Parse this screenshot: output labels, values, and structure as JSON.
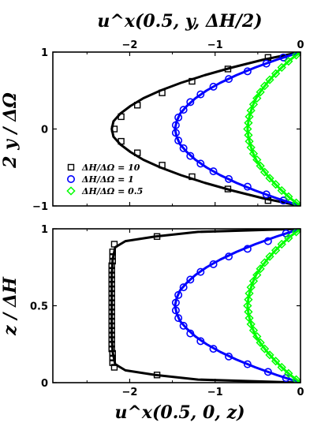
{
  "chart_data": [
    {
      "type": "line",
      "title": "u^x(0.5, y, ΔH/2)",
      "xlabel": "u^x(0.5, y, ΔH/2)",
      "ylabel": "2 y / ΔΩ",
      "xlim": [
        -2.9,
        0.0
      ],
      "ylim": [
        -1.0,
        1.0
      ],
      "x_ticks": [
        "−2",
        "−1",
        "0"
      ],
      "x_tick_values": [
        -2,
        -1,
        0
      ],
      "y_ticks": [
        "−1",
        "0",
        "1"
      ],
      "y_tick_values": [
        -1,
        0,
        1
      ],
      "x_axis_position": "top",
      "grid": false,
      "legend": {
        "location": "lower-left",
        "entries": [
          {
            "label": "ΔH/ΔΩ = 10",
            "color": "#000000",
            "marker": "square"
          },
          {
            "label": "ΔH/ΔΩ = 1",
            "color": "#0000ff",
            "marker": "circle"
          },
          {
            "label": "ΔH/ΔΩ = 0.5",
            "color": "#00ff00",
            "marker": "diamond"
          }
        ]
      },
      "series": [
        {
          "name": "ΔH/ΔΩ = 10",
          "color": "#000000",
          "marker": "square",
          "line_peak": -2.22,
          "y": [
            -1.0,
            -0.9,
            -0.8,
            -0.7,
            -0.6,
            -0.5,
            -0.4,
            -0.3,
            -0.2,
            -0.1,
            0.0,
            0.1,
            0.2,
            0.3,
            0.4,
            0.5,
            0.6,
            0.7,
            0.8,
            0.9,
            1.0
          ],
          "x": [
            0.0,
            -0.44,
            -0.8,
            -1.12,
            -1.4,
            -1.64,
            -1.84,
            -1.99,
            -2.11,
            -2.19,
            -2.21,
            -2.19,
            -2.11,
            -1.99,
            -1.84,
            -1.64,
            -1.4,
            -1.12,
            -0.8,
            -0.44,
            0.0
          ],
          "markers_y": [
            -0.93,
            -0.78,
            -0.62,
            -0.47,
            -0.31,
            -0.16,
            0.0,
            0.16,
            0.31,
            0.47,
            0.62,
            0.78,
            0.93
          ],
          "markers_x": [
            -0.38,
            -0.85,
            -1.27,
            -1.62,
            -1.91,
            -2.1,
            -2.18,
            -2.1,
            -1.91,
            -1.62,
            -1.27,
            -0.85,
            -0.38
          ]
        },
        {
          "name": "ΔH/ΔΩ = 1",
          "color": "#0000ff",
          "marker": "circle",
          "line_peak": -1.47,
          "y": [
            -1.0,
            -0.9,
            -0.8,
            -0.7,
            -0.6,
            -0.5,
            -0.4,
            -0.3,
            -0.2,
            -0.1,
            0.0,
            0.1,
            0.2,
            0.3,
            0.4,
            0.5,
            0.6,
            0.7,
            0.8,
            0.9,
            1.0
          ],
          "x": [
            0.0,
            -0.28,
            -0.53,
            -0.75,
            -0.94,
            -1.1,
            -1.23,
            -1.33,
            -1.41,
            -1.45,
            -1.47,
            -1.45,
            -1.41,
            -1.33,
            -1.23,
            -1.1,
            -0.94,
            -0.75,
            -0.53,
            -0.28,
            0.0
          ],
          "markers_y": [
            -0.93,
            -0.85,
            -0.75,
            -0.65,
            -0.55,
            -0.45,
            -0.35,
            -0.25,
            -0.15,
            -0.05,
            0.05,
            0.15,
            0.25,
            0.35,
            0.45,
            0.55,
            0.65,
            0.75,
            0.85,
            0.93
          ],
          "markers_x": [
            -0.2,
            -0.4,
            -0.62,
            -0.84,
            -1.02,
            -1.17,
            -1.29,
            -1.37,
            -1.43,
            -1.46,
            -1.46,
            -1.43,
            -1.37,
            -1.29,
            -1.17,
            -1.02,
            -0.84,
            -0.62,
            -0.4,
            -0.2
          ]
        },
        {
          "name": "ΔH/ΔΩ = 0.5",
          "color": "#00ff00",
          "marker": "diamond",
          "line_peak": -0.62,
          "y": [
            -1.0,
            -0.9,
            -0.8,
            -0.7,
            -0.6,
            -0.5,
            -0.4,
            -0.3,
            -0.2,
            -0.1,
            0.0,
            0.1,
            0.2,
            0.3,
            0.4,
            0.5,
            0.6,
            0.7,
            0.8,
            0.9,
            1.0
          ],
          "x": [
            0.0,
            -0.12,
            -0.22,
            -0.31,
            -0.39,
            -0.46,
            -0.52,
            -0.56,
            -0.59,
            -0.61,
            -0.62,
            -0.61,
            -0.59,
            -0.56,
            -0.52,
            -0.46,
            -0.39,
            -0.31,
            -0.22,
            -0.12,
            0.0
          ],
          "markers_y": [
            -0.96,
            -0.88,
            -0.8,
            -0.72,
            -0.64,
            -0.56,
            -0.48,
            -0.4,
            -0.32,
            -0.24,
            -0.16,
            -0.08,
            0.0,
            0.08,
            0.16,
            0.24,
            0.32,
            0.4,
            0.48,
            0.56,
            0.64,
            0.72,
            0.8,
            0.88,
            0.96
          ],
          "markers_x": [
            -0.05,
            -0.14,
            -0.22,
            -0.29,
            -0.36,
            -0.42,
            -0.47,
            -0.51,
            -0.55,
            -0.58,
            -0.6,
            -0.61,
            -0.62,
            -0.61,
            -0.6,
            -0.58,
            -0.55,
            -0.51,
            -0.47,
            -0.42,
            -0.36,
            -0.29,
            -0.22,
            -0.14,
            -0.05
          ]
        }
      ]
    },
    {
      "type": "line",
      "title": "",
      "xlabel": "u^x(0.5, 0, z)",
      "ylabel": "z / ΔH",
      "xlim": [
        -2.9,
        0.0
      ],
      "ylim": [
        0.0,
        1.0
      ],
      "x_ticks": [
        "−2",
        "−1",
        "0"
      ],
      "x_tick_values": [
        -2,
        -1,
        0
      ],
      "y_ticks": [
        "0",
        "0.5",
        "1"
      ],
      "y_tick_values": [
        0,
        0.5,
        1
      ],
      "x_axis_position": "bottom",
      "grid": false,
      "series": [
        {
          "name": "ΔH/ΔΩ = 10",
          "color": "#000000",
          "marker": "square",
          "z": [
            0.0,
            0.02,
            0.05,
            0.08,
            0.12,
            0.2,
            0.3,
            0.4,
            0.5,
            0.6,
            0.7,
            0.8,
            0.88,
            0.92,
            0.95,
            0.98,
            1.0
          ],
          "x": [
            0.0,
            -1.2,
            -1.7,
            -2.05,
            -2.17,
            -2.2,
            -2.21,
            -2.21,
            -2.21,
            -2.21,
            -2.21,
            -2.2,
            -2.17,
            -2.05,
            -1.7,
            -1.2,
            0.0
          ],
          "markers_z": [
            0.05,
            0.1,
            0.13,
            0.16,
            0.19,
            0.22,
            0.25,
            0.28,
            0.31,
            0.34,
            0.37,
            0.4,
            0.43,
            0.46,
            0.49,
            0.52,
            0.55,
            0.58,
            0.61,
            0.64,
            0.67,
            0.7,
            0.73,
            0.76,
            0.79,
            0.82,
            0.85,
            0.9,
            0.95
          ],
          "markers_x": [
            -1.68,
            -2.18,
            -2.2,
            -2.2,
            -2.2,
            -2.21,
            -2.21,
            -2.21,
            -2.21,
            -2.21,
            -2.21,
            -2.21,
            -2.21,
            -2.21,
            -2.21,
            -2.21,
            -2.21,
            -2.21,
            -2.21,
            -2.21,
            -2.21,
            -2.21,
            -2.21,
            -2.21,
            -2.2,
            -2.2,
            -2.2,
            -2.18,
            -1.68
          ]
        },
        {
          "name": "ΔH/ΔΩ = 1",
          "color": "#0000ff",
          "marker": "circle",
          "z": [
            0.0,
            0.05,
            0.1,
            0.15,
            0.2,
            0.25,
            0.3,
            0.35,
            0.4,
            0.45,
            0.5,
            0.55,
            0.6,
            0.65,
            0.7,
            0.75,
            0.8,
            0.85,
            0.9,
            0.95,
            1.0
          ],
          "x": [
            0.0,
            -0.28,
            -0.53,
            -0.75,
            -0.94,
            -1.1,
            -1.23,
            -1.33,
            -1.41,
            -1.45,
            -1.47,
            -1.45,
            -1.41,
            -1.33,
            -1.23,
            -1.1,
            -0.94,
            -0.75,
            -0.53,
            -0.28,
            0.0
          ],
          "markers_z": [
            0.03,
            0.07,
            0.12,
            0.17,
            0.22,
            0.27,
            0.32,
            0.37,
            0.42,
            0.47,
            0.52,
            0.57,
            0.62,
            0.67,
            0.72,
            0.77,
            0.82,
            0.87,
            0.92,
            0.97
          ],
          "markers_x": [
            -0.17,
            -0.38,
            -0.62,
            -0.84,
            -1.02,
            -1.17,
            -1.29,
            -1.37,
            -1.43,
            -1.46,
            -1.46,
            -1.43,
            -1.37,
            -1.29,
            -1.17,
            -1.02,
            -0.84,
            -0.62,
            -0.38,
            -0.17
          ]
        },
        {
          "name": "ΔH/ΔΩ = 0.5",
          "color": "#00ff00",
          "marker": "diamond",
          "z": [
            0.0,
            0.05,
            0.1,
            0.15,
            0.2,
            0.25,
            0.3,
            0.35,
            0.4,
            0.45,
            0.5,
            0.55,
            0.6,
            0.65,
            0.7,
            0.75,
            0.8,
            0.85,
            0.9,
            0.95,
            1.0
          ],
          "x": [
            0.0,
            -0.12,
            -0.22,
            -0.31,
            -0.39,
            -0.46,
            -0.52,
            -0.56,
            -0.59,
            -0.61,
            -0.62,
            -0.61,
            -0.59,
            -0.56,
            -0.52,
            -0.46,
            -0.39,
            -0.31,
            -0.22,
            -0.12,
            0.0
          ],
          "markers_z": [
            0.02,
            0.06,
            0.1,
            0.14,
            0.18,
            0.22,
            0.26,
            0.3,
            0.34,
            0.38,
            0.42,
            0.46,
            0.5,
            0.54,
            0.58,
            0.62,
            0.66,
            0.7,
            0.74,
            0.78,
            0.82,
            0.86,
            0.9,
            0.94,
            0.98
          ],
          "markers_x": [
            -0.05,
            -0.14,
            -0.22,
            -0.29,
            -0.36,
            -0.42,
            -0.47,
            -0.51,
            -0.55,
            -0.58,
            -0.6,
            -0.61,
            -0.62,
            -0.61,
            -0.6,
            -0.58,
            -0.55,
            -0.51,
            -0.47,
            -0.42,
            -0.36,
            -0.29,
            -0.22,
            -0.14,
            -0.05
          ]
        }
      ]
    }
  ]
}
